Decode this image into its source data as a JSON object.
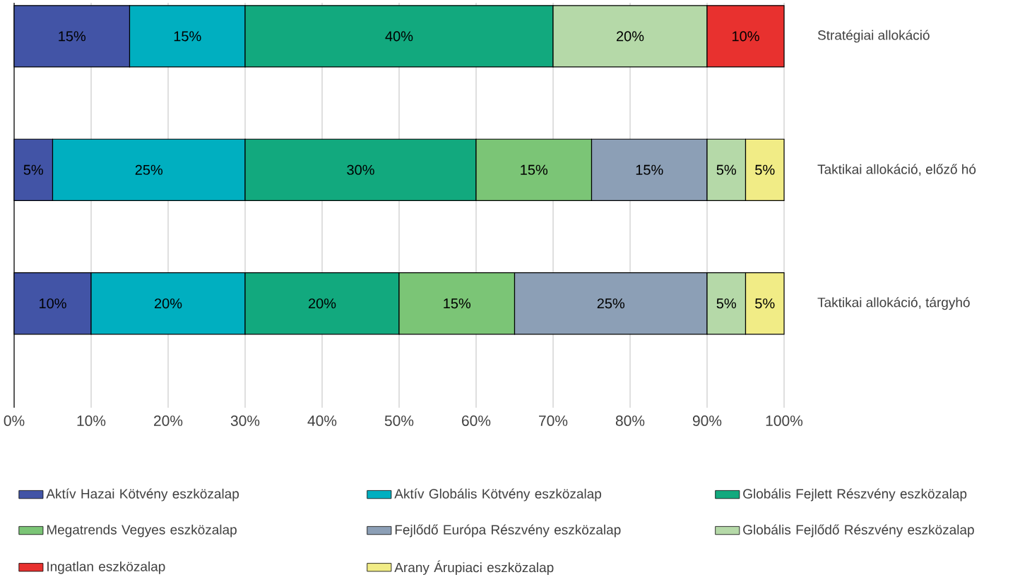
{
  "chart_data": {
    "type": "bar",
    "orientation": "horizontal",
    "stacked": true,
    "categories": [
      "Stratégiai allokáció",
      "Taktikai allokáció, előző hó",
      "Taktikai allokáció, tárgyhó"
    ],
    "series": [
      {
        "name": "Aktív Hazai Kötvény eszközalap",
        "color": "#4254a6",
        "values": [
          15,
          5,
          10
        ],
        "value_labels": [
          "15%",
          "5%",
          "10%"
        ]
      },
      {
        "name": "Aktív Globális Kötvény eszközalap",
        "color": "#00afc0",
        "values": [
          15,
          25,
          20
        ],
        "value_labels": [
          "15%",
          "25%",
          "20%"
        ]
      },
      {
        "name": "Globális Fejlett Részvény eszközalap",
        "color": "#12a97e",
        "values": [
          40,
          30,
          20
        ],
        "value_labels": [
          "40%",
          "30%",
          "20%"
        ]
      },
      {
        "name": "Megatrends Vegyes eszközalap",
        "color": "#7bc576",
        "values": [
          null,
          15,
          15
        ],
        "value_labels": [
          null,
          "15%",
          "15%"
        ]
      },
      {
        "name": "Fejlődő Európa Részvény eszközalap",
        "color": "#8c9fb6",
        "values": [
          null,
          15,
          25
        ],
        "value_labels": [
          null,
          "15%",
          "25%"
        ]
      },
      {
        "name": "Globális Fejlődő Részvény eszközalap",
        "color": "#b5d9a8",
        "values": [
          20,
          5,
          5
        ],
        "value_labels": [
          "20%",
          "5%",
          "5%"
        ]
      },
      {
        "name": "Ingatlan eszközalap",
        "color": "#e8312f",
        "values": [
          10,
          null,
          null
        ],
        "value_labels": [
          "10%",
          null,
          null
        ]
      },
      {
        "name": "Arany Árupiaci eszközalap",
        "color": "#f1ec86",
        "values": [
          null,
          5,
          5
        ],
        "value_labels": [
          null,
          "5%",
          "5%"
        ]
      }
    ],
    "xlim": [
      0,
      100
    ],
    "xticks": [
      {
        "value": 0,
        "label": "0%"
      },
      {
        "value": 10,
        "label": "10%"
      },
      {
        "value": 20,
        "label": "20%"
      },
      {
        "value": 30,
        "label": "30%"
      },
      {
        "value": 40,
        "label": "40%"
      },
      {
        "value": 50,
        "label": "50%"
      },
      {
        "value": 60,
        "label": "60%"
      },
      {
        "value": 70,
        "label": "70%"
      },
      {
        "value": 80,
        "label": "80%"
      },
      {
        "value": 90,
        "label": "90%"
      },
      {
        "value": 100,
        "label": "100%"
      }
    ],
    "grid": "x",
    "legend": "bottom"
  }
}
